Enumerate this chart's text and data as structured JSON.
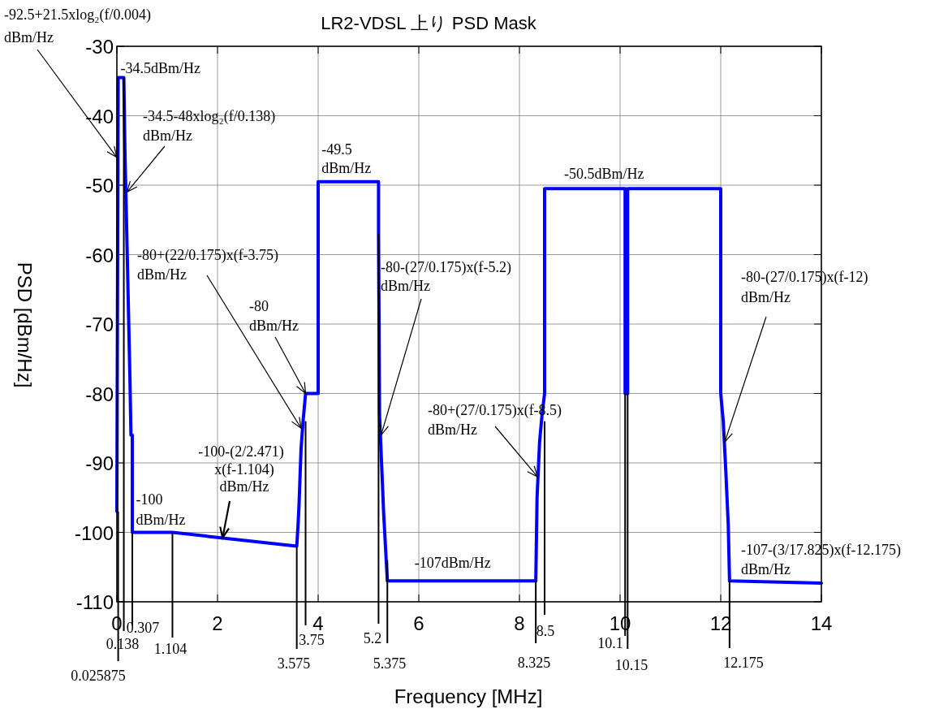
{
  "chart_data": {
    "type": "line",
    "title": "LR2-VDSL 上り PSD Mask",
    "xlabel": "Frequency [MHz]",
    "ylabel": "PSD [dBm/Hz]",
    "xlim": [
      0,
      14
    ],
    "ylim": [
      -110,
      -30
    ],
    "xticks": [
      0,
      2,
      4,
      6,
      8,
      10,
      12,
      14
    ],
    "yticks": [
      -110,
      -100,
      -90,
      -80,
      -70,
      -60,
      -50,
      -40,
      -30
    ],
    "grid": true,
    "series": [
      {
        "color": "#0000ff",
        "x": [
          0,
          0.025875,
          0.138,
          0.16,
          0.2,
          0.23,
          0.26,
          0.28,
          0.307,
          0.307,
          1.104,
          3.575,
          3.6,
          3.62,
          3.64,
          3.66,
          3.7,
          3.75,
          4.0,
          4.0,
          5.2,
          5.2,
          5.22,
          5.26,
          5.3,
          5.375,
          8.325,
          8.35,
          8.4,
          8.45,
          8.5,
          8.5,
          10.1,
          10.1,
          10.15,
          10.15,
          12,
          12,
          12.05,
          12.1,
          12.15,
          12.175,
          14
        ],
        "values": [
          -97,
          -34.5,
          -34.5,
          -45,
          -58,
          -68,
          -78,
          -86,
          -86,
          -100,
          -100,
          -102,
          -99,
          -96,
          -92,
          -88,
          -84,
          -80,
          -80,
          -49.5,
          -49.5,
          -57,
          -83,
          -90,
          -97,
          -107,
          -107,
          -95,
          -87,
          -83,
          -80,
          -50.5,
          -50.5,
          -80,
          -80,
          -50.5,
          -50.5,
          -80,
          -84,
          -91,
          -99,
          -107,
          -107.3
        ]
      }
    ],
    "annotations": [
      {
        "text": "-92.5+21.5xlog₂(f/0.004)\ndBm/Hz",
        "x": 0,
        "y": -46
      },
      {
        "text": "-34.5dBm/Hz",
        "x": 0.138,
        "y": -34.5
      },
      {
        "text": "-34.5-48xlog₂(f/0.138)\ndBm/Hz",
        "x": 0.2,
        "y": -51
      },
      {
        "text": "-49.5\ndBm/Hz",
        "x": 4.6,
        "y": -49.5
      },
      {
        "text": "-50.5dBm/Hz",
        "x": 10,
        "y": -50.5
      },
      {
        "text": "-80+(22/0.175)x(f-3.75)\ndBm/Hz",
        "x": 3.66,
        "y": -85
      },
      {
        "text": "-80\ndBm/Hz",
        "x": 3.75,
        "y": -80
      },
      {
        "text": "-80-(27/0.175)x(f-5.2)\ndBm/Hz",
        "x": 5.25,
        "y": -86
      },
      {
        "text": "-80-(27/0.175)x(f-12)\ndBm/Hz",
        "x": 12.08,
        "y": -87
      },
      {
        "text": "-80+(27/0.175)x(f-8.5)\ndBm/Hz",
        "x": 8.36,
        "y": -92
      },
      {
        "text": "-100-(2/2.471)\nx(f-1.104)\ndBm/Hz",
        "x": 2.1,
        "y": -100.8
      },
      {
        "text": "-100\ndBm/Hz",
        "x": 0.7,
        "y": -100
      },
      {
        "text": "-107dBm/Hz",
        "x": 6.9,
        "y": -107
      },
      {
        "text": "-107-(3/17.825)x(f-12.175)\ndBm/Hz",
        "x": 13,
        "y": -107.1
      },
      {
        "text": "0.025875",
        "x": 0.025875,
        "y": -97
      },
      {
        "text": "0.138",
        "x": 0.138,
        "y": -34.5
      },
      {
        "text": "0.307",
        "x": 0.307,
        "y": -100
      },
      {
        "text": "1.104",
        "x": 1.104,
        "y": -100
      },
      {
        "text": "3.575",
        "x": 3.575,
        "y": -102
      },
      {
        "text": "3.75",
        "x": 3.75,
        "y": -84
      },
      {
        "text": "5.2",
        "x": 5.2,
        "y": -57
      },
      {
        "text": "5.375",
        "x": 5.375,
        "y": -104
      },
      {
        "text": "8.325",
        "x": 8.325,
        "y": -107
      },
      {
        "text": "8.5",
        "x": 8.5,
        "y": -84
      },
      {
        "text": "10.1",
        "x": 10.1,
        "y": -80
      },
      {
        "text": "10.15",
        "x": 10.15,
        "y": -80
      },
      {
        "text": "12.175",
        "x": 12.175,
        "y": -107
      }
    ]
  }
}
